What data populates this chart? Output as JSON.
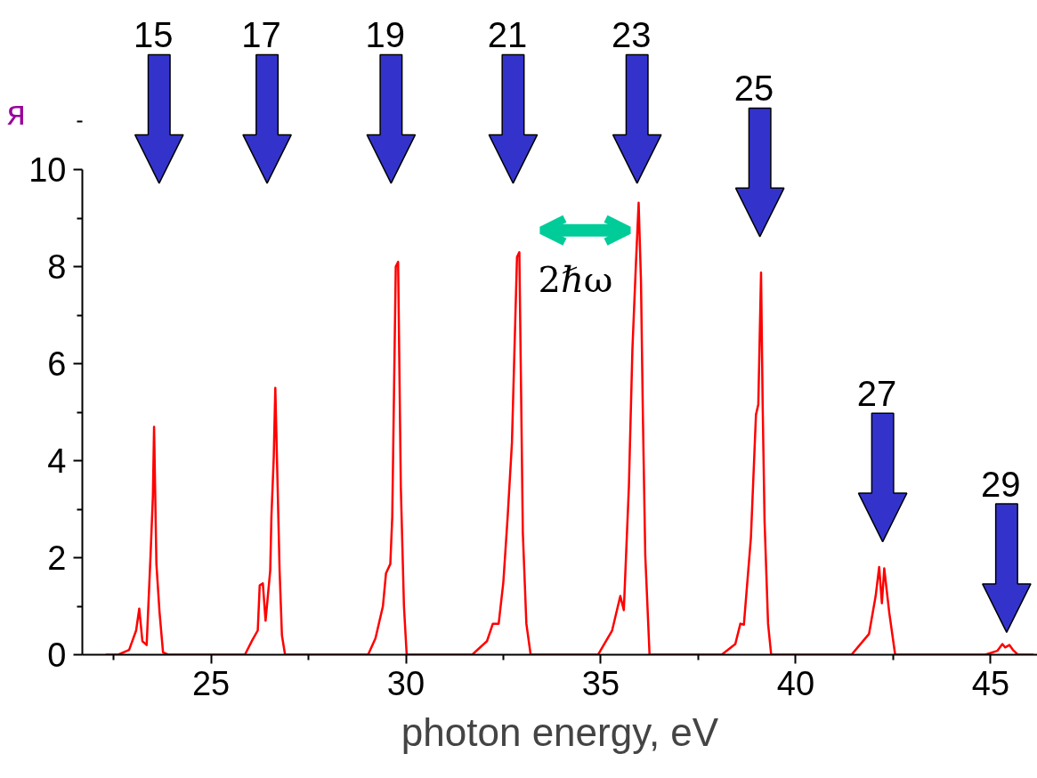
{
  "chart_data": {
    "type": "line",
    "xlabel": "photon energy, eV",
    "x": [
      22.3,
      22.62,
      22.9,
      23.08,
      23.16,
      23.24,
      23.35,
      23.45,
      23.51,
      23.54,
      23.6,
      23.68,
      23.77,
      23.9,
      25.87,
      26.06,
      26.2,
      26.25,
      26.33,
      26.4,
      26.52,
      26.55,
      26.61,
      26.65,
      26.71,
      26.76,
      26.82,
      26.9,
      29.03,
      29.22,
      29.41,
      29.49,
      29.6,
      29.65,
      29.74,
      29.8,
      29.87,
      29.95,
      30.02,
      31.7,
      32.08,
      32.23,
      32.38,
      32.5,
      32.61,
      32.72,
      32.85,
      32.91,
      33.0,
      33.09,
      33.2,
      34.93,
      35.29,
      35.5,
      35.59,
      35.72,
      35.81,
      35.9,
      35.97,
      36.03,
      36.08,
      36.14,
      36.25,
      38.1,
      38.45,
      38.58,
      38.67,
      38.85,
      38.98,
      39.04,
      39.11,
      39.15,
      39.2,
      39.29,
      39.37,
      41.43,
      41.88,
      42.05,
      42.14,
      42.21,
      42.27,
      42.33,
      42.4,
      42.55,
      44.86,
      45.17,
      45.3,
      45.37,
      45.48,
      45.57,
      45.7,
      46.1
    ],
    "series": [
      {
        "color": "#ff0000",
        "values": [
          0,
          0,
          0.1,
          0.5,
          0.95,
          0.28,
          0.2,
          2.05,
          3.27,
          4.7,
          1.87,
          0.88,
          0.05,
          0,
          0,
          0.3,
          0.5,
          1.43,
          1.47,
          0.7,
          1.74,
          2.84,
          4.07,
          5.5,
          3.45,
          1.74,
          0.4,
          0,
          0,
          0.34,
          1.0,
          1.68,
          1.87,
          2.84,
          8.0,
          8.1,
          3.45,
          1.0,
          0,
          0,
          0.28,
          0.64,
          0.64,
          1.5,
          2.84,
          4.37,
          8.2,
          8.3,
          2.5,
          0.64,
          0,
          0,
          0.5,
          1.21,
          0.92,
          3.47,
          6.29,
          8.05,
          9.32,
          7.7,
          4.88,
          2.05,
          0,
          0,
          0.22,
          0.64,
          0.62,
          2.41,
          4.95,
          5.16,
          7.88,
          5.23,
          2.76,
          0.64,
          0,
          0,
          0.43,
          1.21,
          1.81,
          1.06,
          1.78,
          1.35,
          0.86,
          0,
          0,
          0.08,
          0.22,
          0.15,
          0.2,
          0.1,
          0,
          0
        ]
      }
    ],
    "xlim": [
      21.7,
      46.2
    ],
    "ylim": [
      0,
      10
    ],
    "xticks": [
      25,
      30,
      35,
      40,
      45
    ],
    "yticks": [
      0,
      2,
      4,
      6,
      8,
      10
    ],
    "grid": false,
    "marker": "none",
    "line_style": "solid",
    "annotations": [
      "я",
      "15",
      "17",
      "19",
      "21",
      "23",
      "25",
      "27",
      "29",
      "2ℏω"
    ]
  }
}
